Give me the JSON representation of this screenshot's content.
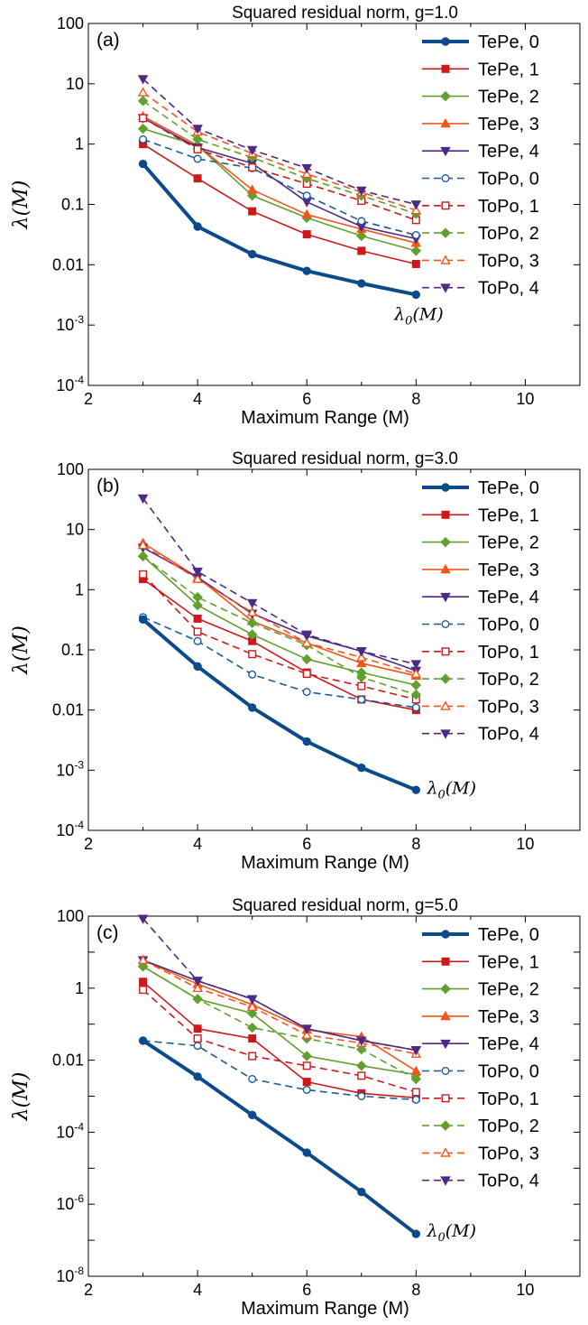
{
  "styles": {
    "TePe, 0": {
      "color": "#0b4a8b",
      "marker": "circle",
      "fill": true,
      "dash": false,
      "thick": true
    },
    "TePe, 1": {
      "color": "#cc1a1a",
      "marker": "square",
      "fill": true,
      "dash": false
    },
    "TePe, 2": {
      "color": "#62a02e",
      "marker": "diamond",
      "fill": true,
      "dash": false
    },
    "TePe, 3": {
      "color": "#f2561d",
      "marker": "triangle-up",
      "fill": true,
      "dash": false
    },
    "TePe, 4": {
      "color": "#4c2a85",
      "marker": "triangle-down",
      "fill": true,
      "dash": false
    },
    "ToPo, 0": {
      "color": "#1c5a9c",
      "marker": "circle",
      "fill": false,
      "dash": true
    },
    "ToPo, 1": {
      "color": "#cc1a1a",
      "marker": "square",
      "fill": false,
      "dash": true
    },
    "ToPo, 2": {
      "color": "#62a02e",
      "marker": "diamond",
      "fill": true,
      "dash": true
    },
    "ToPo, 3": {
      "color": "#f2561d",
      "marker": "triangle-up",
      "fill": false,
      "dash": true
    },
    "ToPo, 4": {
      "color": "#4c2a85",
      "marker": "triangle-down",
      "fill": true,
      "dash": true
    }
  },
  "chart_data": [
    {
      "type": "line",
      "title": "Squared residual norm, g=1.0",
      "panel_label": "(a)",
      "xlabel": "Maximum Range (M)",
      "ylabel": "λ(M)",
      "yscale": "log",
      "xlim": [
        2,
        11
      ],
      "ylim": [
        0.0001,
        100
      ],
      "xticks": [
        2,
        4,
        6,
        8,
        10
      ],
      "yticks": [
        {
          "value": 100,
          "label": "100"
        },
        {
          "value": 10,
          "label": "10"
        },
        {
          "value": 1,
          "label": "1"
        },
        {
          "value": 0.1,
          "label": "0.1"
        },
        {
          "value": 0.01,
          "label": "0.01"
        },
        {
          "value": 0.001,
          "label": "10",
          "exp": "-3"
        },
        {
          "value": 0.0001,
          "label": "10",
          "exp": "-4"
        }
      ],
      "legend": "top-right",
      "annotation": {
        "text": "λ0(M)",
        "base": "λ",
        "sub": "0",
        "rest": "(M)",
        "x": 7.6,
        "y": 0.0015
      },
      "x": [
        3,
        4,
        5,
        6,
        7,
        8
      ],
      "series": [
        {
          "name": "TePe, 0",
          "values": [
            0.47,
            0.043,
            0.015,
            0.0079,
            0.0049,
            0.0032
          ]
        },
        {
          "name": "TePe, 1",
          "values": [
            1.0,
            0.27,
            0.077,
            0.032,
            0.017,
            0.0103
          ]
        },
        {
          "name": "TePe, 2",
          "values": [
            1.8,
            0.95,
            0.14,
            0.06,
            0.03,
            0.017
          ]
        },
        {
          "name": "TePe, 3",
          "values": [
            2.9,
            0.95,
            0.175,
            0.068,
            0.039,
            0.023
          ]
        },
        {
          "name": "TePe, 4",
          "values": [
            2.7,
            0.88,
            0.48,
            0.11,
            0.043,
            0.027
          ]
        },
        {
          "name": "ToPo, 0",
          "values": [
            1.2,
            0.57,
            0.4,
            0.14,
            0.053,
            0.031
          ]
        },
        {
          "name": "ToPo, 1",
          "values": [
            2.7,
            0.82,
            0.41,
            0.22,
            0.115,
            0.055
          ]
        },
        {
          "name": "ToPo, 2",
          "values": [
            5.2,
            1.2,
            0.6,
            0.27,
            0.14,
            0.07
          ]
        },
        {
          "name": "ToPo, 3",
          "values": [
            7.2,
            1.6,
            0.7,
            0.32,
            0.16,
            0.08
          ]
        },
        {
          "name": "ToPo, 4",
          "values": [
            12,
            1.8,
            0.8,
            0.4,
            0.17,
            0.1
          ]
        }
      ]
    },
    {
      "type": "line",
      "title": "Squared residual norm, g=3.0",
      "panel_label": "(b)",
      "xlabel": "Maximum Range (M)",
      "ylabel": "λ(M)",
      "yscale": "log",
      "xlim": [
        2,
        11
      ],
      "ylim": [
        0.0001,
        100
      ],
      "xticks": [
        2,
        4,
        6,
        8,
        10
      ],
      "yticks": [
        {
          "value": 100,
          "label": "100"
        },
        {
          "value": 10,
          "label": "10"
        },
        {
          "value": 1,
          "label": "1"
        },
        {
          "value": 0.1,
          "label": "0.1"
        },
        {
          "value": 0.01,
          "label": "0.01"
        },
        {
          "value": 0.001,
          "label": "10",
          "exp": "-3"
        },
        {
          "value": 0.0001,
          "label": "10",
          "exp": "-4"
        }
      ],
      "legend": "top-right",
      "annotation": {
        "text": "λ0(M)",
        "base": "λ",
        "sub": "0",
        "rest": "(M)",
        "x": 8.2,
        "y": 0.0005
      },
      "x": [
        3,
        4,
        5,
        6,
        7,
        8
      ],
      "series": [
        {
          "name": "TePe, 0",
          "values": [
            0.32,
            0.053,
            0.011,
            0.003,
            0.0011,
            0.00047
          ]
        },
        {
          "name": "TePe, 1",
          "values": [
            1.5,
            0.33,
            0.14,
            0.042,
            0.015,
            0.01
          ]
        },
        {
          "name": "TePe, 2",
          "values": [
            3.6,
            0.55,
            0.18,
            0.07,
            0.042,
            0.026
          ]
        },
        {
          "name": "TePe, 3",
          "values": [
            6.0,
            1.6,
            0.3,
            0.13,
            0.06,
            0.037
          ]
        },
        {
          "name": "TePe, 4",
          "values": [
            5.0,
            1.6,
            0.4,
            0.17,
            0.095,
            0.045
          ]
        },
        {
          "name": "ToPo, 0",
          "values": [
            0.35,
            0.14,
            0.039,
            0.02,
            0.015,
            0.011
          ]
        },
        {
          "name": "ToPo, 1",
          "values": [
            1.8,
            0.2,
            0.085,
            0.04,
            0.025,
            0.015
          ]
        },
        {
          "name": "ToPo, 2",
          "values": [
            3.6,
            0.75,
            0.28,
            0.12,
            0.035,
            0.018
          ]
        },
        {
          "name": "ToPo, 3",
          "values": [
            5.5,
            1.5,
            0.42,
            0.13,
            0.075,
            0.04
          ]
        },
        {
          "name": "ToPo, 4",
          "values": [
            33,
            2.0,
            0.6,
            0.18,
            0.095,
            0.058
          ]
        }
      ]
    },
    {
      "type": "line",
      "title": "Squared residual norm, g=5.0",
      "panel_label": "(c)",
      "xlabel": "Maximum Range (M)",
      "ylabel": "λ(M)",
      "yscale": "log",
      "xlim": [
        2,
        11
      ],
      "ylim": [
        1e-08,
        100
      ],
      "xticks": [
        2,
        4,
        6,
        8,
        10
      ],
      "yticks": [
        {
          "value": 100,
          "label": "100"
        },
        {
          "value": 1,
          "label": "1"
        },
        {
          "value": 0.01,
          "label": "0.01"
        },
        {
          "value": 0.0001,
          "label": "10",
          "exp": "-4"
        },
        {
          "value": 1e-06,
          "label": "10",
          "exp": "-6"
        },
        {
          "value": 1e-08,
          "label": "10",
          "exp": "-8"
        }
      ],
      "legend": "top-right",
      "annotation": {
        "text": "λ0(M)",
        "base": "λ",
        "sub": "0",
        "rest": "(M)",
        "x": 8.2,
        "y": 1.8e-07
      },
      "x": [
        3,
        4,
        5,
        6,
        7,
        8
      ],
      "series": [
        {
          "name": "TePe, 0",
          "values": [
            0.035,
            0.0035,
            0.0003,
            2.7e-05,
            2.2e-06,
            1.5e-07
          ]
        },
        {
          "name": "TePe, 1",
          "values": [
            1.5,
            0.075,
            0.04,
            0.0025,
            0.0012,
            0.0009
          ]
        },
        {
          "name": "TePe, 2",
          "values": [
            4.0,
            0.5,
            0.2,
            0.013,
            0.007,
            0.004
          ]
        },
        {
          "name": "TePe, 3",
          "values": [
            6.0,
            1.3,
            0.35,
            0.07,
            0.045,
            0.005
          ]
        },
        {
          "name": "TePe, 4",
          "values": [
            6.0,
            1.6,
            0.5,
            0.075,
            0.035,
            0.019
          ]
        },
        {
          "name": "ToPo, 0",
          "values": [
            0.035,
            0.025,
            0.003,
            0.0015,
            0.001,
            0.0008
          ]
        },
        {
          "name": "ToPo, 1",
          "values": [
            0.9,
            0.04,
            0.013,
            0.007,
            0.0037,
            0.0013
          ]
        },
        {
          "name": "ToPo, 2",
          "values": [
            4.0,
            0.5,
            0.08,
            0.04,
            0.02,
            0.003
          ]
        },
        {
          "name": "ToPo, 3",
          "values": [
            6.0,
            1.0,
            0.3,
            0.05,
            0.03,
            0.015
          ]
        },
        {
          "name": "ToPo, 4",
          "values": [
            85,
            1.6,
            0.5,
            0.075,
            0.035,
            0.019
          ]
        }
      ]
    }
  ]
}
